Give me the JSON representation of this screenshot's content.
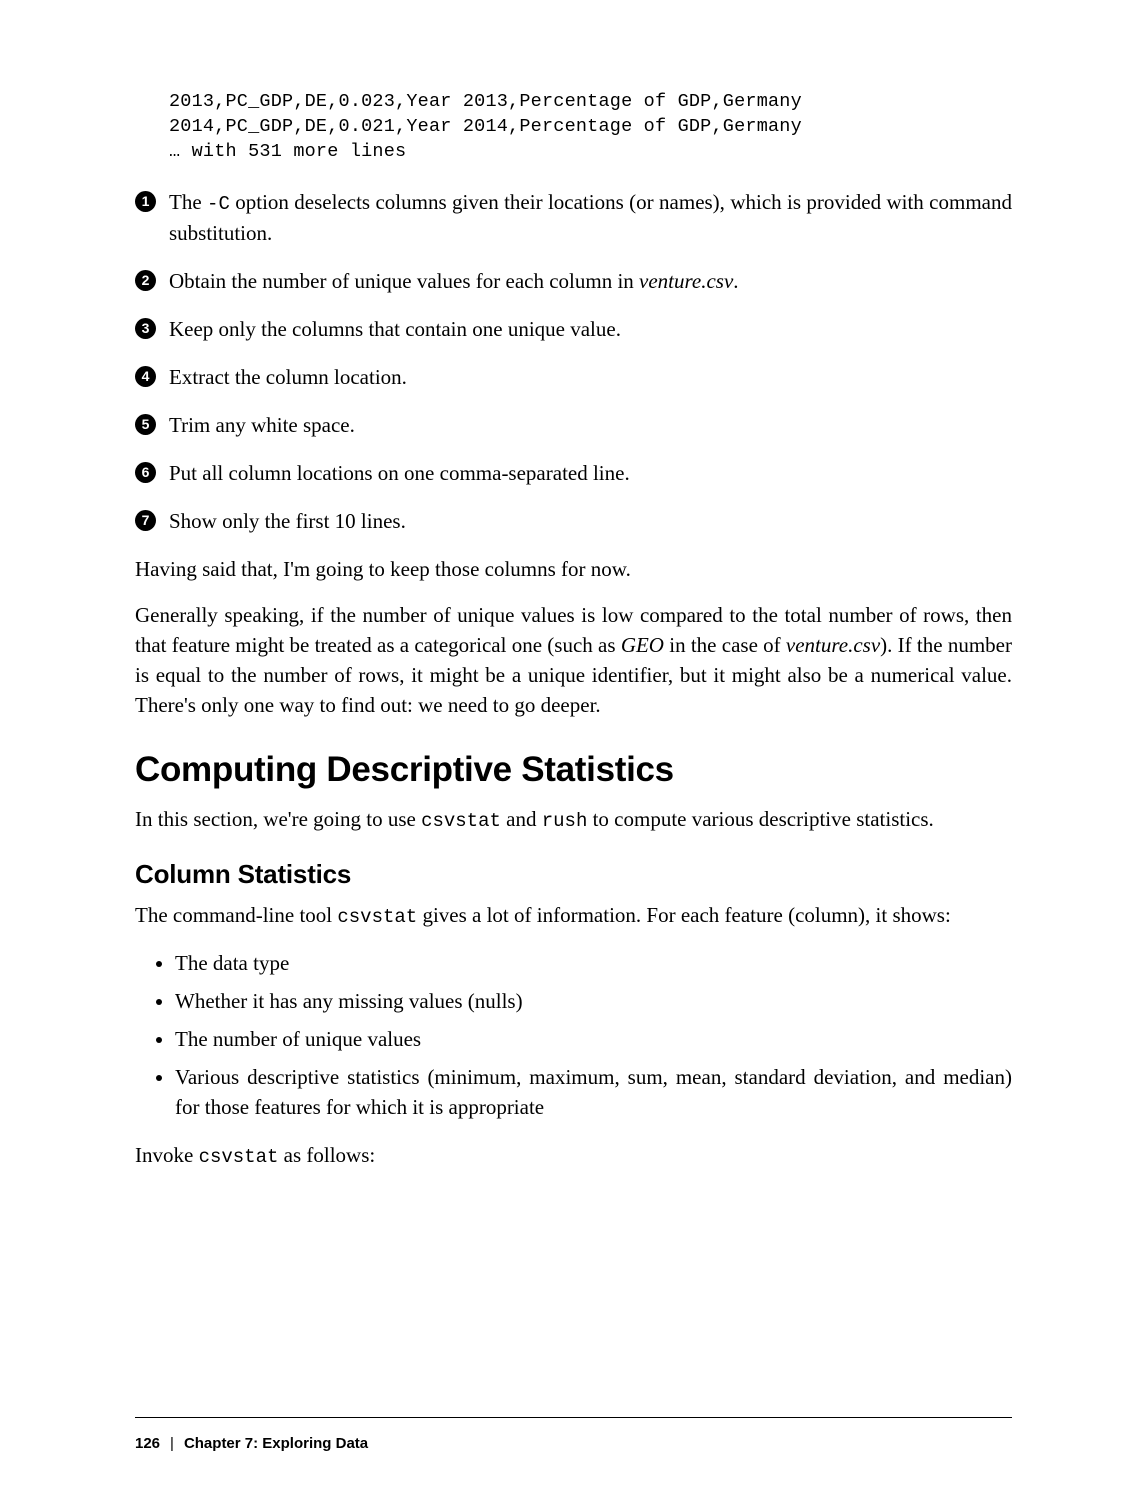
{
  "code": {
    "line1": "2013,PC_GDP,DE,0.023,Year 2013,Percentage of GDP,Germany",
    "line2": "2014,PC_GDP,DE,0.021,Year 2014,Percentage of GDP,Germany",
    "line3": "… with 531 more lines"
  },
  "callouts": [
    {
      "n": "1",
      "text_a": "The ",
      "code": "-C",
      "text_b": " option deselects columns given their locations (or names), which is provided with command substitution."
    },
    {
      "n": "2",
      "text_a": "Obtain the number of unique values for each column in ",
      "ital": "venture.csv",
      "text_b": "."
    },
    {
      "n": "3",
      "text_a": "Keep only the columns that contain one unique value.",
      "text_b": ""
    },
    {
      "n": "4",
      "text_a": "Extract the column location.",
      "text_b": ""
    },
    {
      "n": "5",
      "text_a": "Trim any white space.",
      "text_b": ""
    },
    {
      "n": "6",
      "text_a": "Put all column locations on one comma-separated line.",
      "text_b": ""
    },
    {
      "n": "7",
      "text_a": "Show only the first 10 lines.",
      "text_b": ""
    }
  ],
  "para1": "Having said that, I'm going to keep those columns for now.",
  "para2": {
    "a": "Generally speaking, if the number of unique values is low compared to the total number of rows, then that feature might be treated as a categorical one (such as ",
    "i1": "GEO",
    "b": " in the case of ",
    "i2": "venture.csv",
    "c": "). If the number is equal to the number of rows, it might be a unique identifier, but it might also be a numerical value. There's only one way to find out: we need to go deeper."
  },
  "h2": "Computing Descriptive Statistics",
  "para3": {
    "a": "In this section, we're going to use ",
    "c1": "csvstat",
    "b": " and ",
    "c2": "rush",
    "c": " to compute various descriptive statistics."
  },
  "h3": "Column Statistics",
  "para4": {
    "a": "The command-line tool ",
    "c1": "csvstat",
    "b": " gives a lot of information. For each feature (column), it shows:"
  },
  "bullets": [
    "The data type",
    "Whether it has any missing values (nulls)",
    "The number of unique values",
    "Various descriptive statistics (minimum, maximum, sum, mean, standard deviation, and median) for those features for which it is appropriate"
  ],
  "para5": {
    "a": "Invoke ",
    "c1": "csvstat",
    "b": " as follows:"
  },
  "footer": {
    "page": "126",
    "chapter": "Chapter 7: Exploring Data"
  }
}
